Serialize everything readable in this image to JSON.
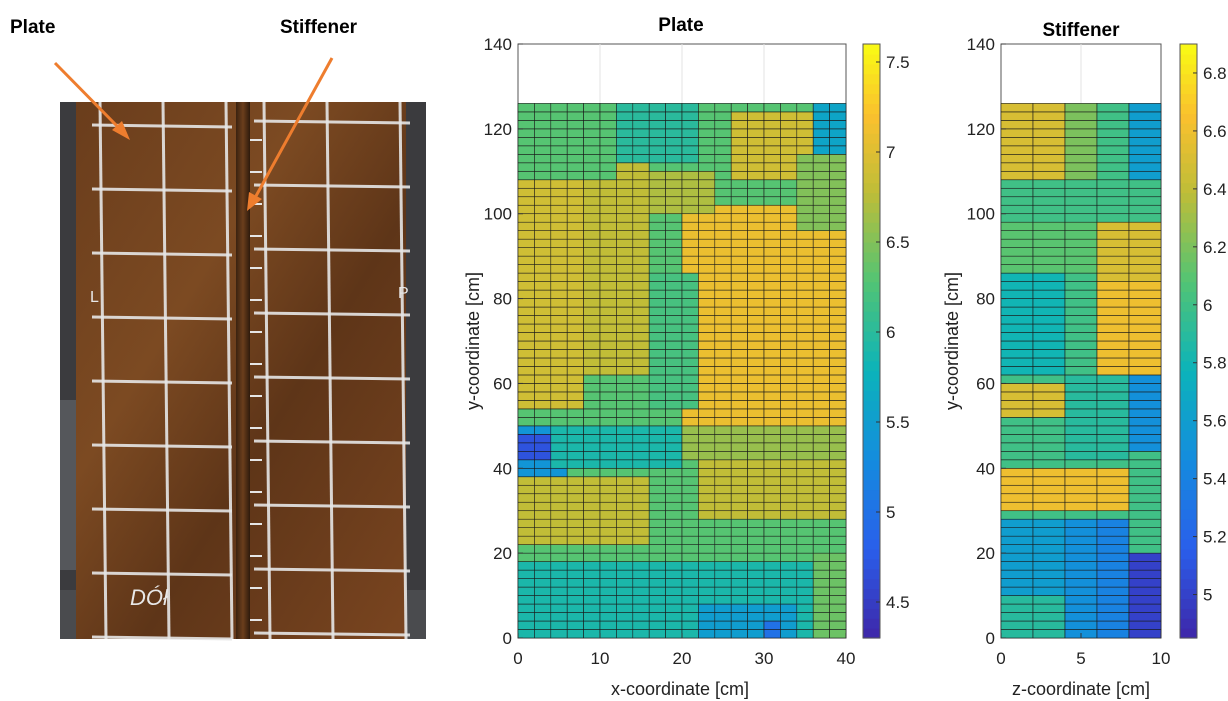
{
  "photo": {
    "label_plate": "Plate",
    "label_stiffener": "Stiffener",
    "marks": {
      "left": "L",
      "right": "P",
      "bottom": "DÓł"
    }
  },
  "colormap": "parula",
  "chart_data": [
    {
      "type": "heatmap",
      "title": "Plate",
      "xlabel": "x-coordinate [cm]",
      "ylabel": "y-coordinate [cm]",
      "xlim": [
        0,
        40
      ],
      "ylim": [
        0,
        140
      ],
      "xticks": [
        0,
        10,
        20,
        30,
        40
      ],
      "yticks": [
        0,
        20,
        40,
        60,
        80,
        100,
        120,
        140
      ],
      "grid_extent": {
        "x": [
          0,
          40
        ],
        "y": [
          0,
          126
        ]
      },
      "grid_size": {
        "cols": 20,
        "rows": 63
      },
      "colorbar": {
        "min": 4.3,
        "max": 7.6,
        "ticks": [
          4.5,
          5,
          5.5,
          6,
          6.5,
          7,
          7.5
        ]
      },
      "value_regions": [
        {
          "x": [
            0,
            40
          ],
          "y": [
            0,
            126
          ],
          "value": 6.3
        },
        {
          "x": [
            0,
            8
          ],
          "y": [
            55,
            112
          ],
          "value": 6.9
        },
        {
          "x": [
            8,
            16
          ],
          "y": [
            62,
            112
          ],
          "value": 6.8
        },
        {
          "x": [
            20,
            40
          ],
          "y": [
            50,
            102
          ],
          "value": 7.1
        },
        {
          "x": [
            16,
            24
          ],
          "y": [
            100,
            110
          ],
          "value": 6.7
        },
        {
          "x": [
            26,
            36
          ],
          "y": [
            108,
            124
          ],
          "value": 6.9
        },
        {
          "x": [
            0,
            12
          ],
          "y": [
            108,
            126
          ],
          "value": 6.3
        },
        {
          "x": [
            12,
            22
          ],
          "y": [
            112,
            126
          ],
          "value": 6.0
        },
        {
          "x": [
            36,
            40
          ],
          "y": [
            114,
            126
          ],
          "value": 5.6
        },
        {
          "x": [
            34,
            40
          ],
          "y": [
            96,
            114
          ],
          "value": 6.5
        },
        {
          "x": [
            16,
            22
          ],
          "y": [
            55,
            85
          ],
          "value": 6.2
        },
        {
          "x": [
            0,
            6
          ],
          "y": [
            38,
            50
          ],
          "value": 5.4
        },
        {
          "x": [
            0,
            4
          ],
          "y": [
            42,
            48
          ],
          "value": 4.7
        },
        {
          "x": [
            4,
            20
          ],
          "y": [
            40,
            50
          ],
          "value": 5.9
        },
        {
          "x": [
            0,
            16
          ],
          "y": [
            22,
            38
          ],
          "value": 6.8
        },
        {
          "x": [
            22,
            40
          ],
          "y": [
            28,
            42
          ],
          "value": 6.8
        },
        {
          "x": [
            20,
            40
          ],
          "y": [
            42,
            50
          ],
          "value": 6.6
        },
        {
          "x": [
            0,
            40
          ],
          "y": [
            0,
            18
          ],
          "value": 5.9
        },
        {
          "x": [
            22,
            34
          ],
          "y": [
            0,
            8
          ],
          "value": 5.5
        },
        {
          "x": [
            30,
            32
          ],
          "y": [
            0,
            4
          ],
          "value": 5.0
        },
        {
          "x": [
            36,
            40
          ],
          "y": [
            0,
            20
          ],
          "value": 6.4
        }
      ]
    },
    {
      "type": "heatmap",
      "title": "Stiffener",
      "xlabel": "z-coordinate [cm]",
      "ylabel": "y-coordinate [cm]",
      "xlim": [
        0,
        10
      ],
      "ylim": [
        0,
        140
      ],
      "xticks": [
        0,
        5,
        10
      ],
      "yticks": [
        0,
        20,
        40,
        60,
        80,
        100,
        120,
        140
      ],
      "grid_extent": {
        "x": [
          0,
          10
        ],
        "y": [
          0,
          126
        ]
      },
      "grid_size": {
        "cols": 5,
        "rows": 63
      },
      "colorbar": {
        "min": 4.85,
        "max": 6.9,
        "ticks": [
          5,
          5.2,
          5.4,
          5.6,
          5.8,
          6,
          6.2,
          6.4,
          6.6,
          6.8
        ]
      },
      "value_regions": [
        {
          "x": [
            0,
            10
          ],
          "y": [
            0,
            126
          ],
          "value": 6.0
        },
        {
          "x": [
            0,
            4
          ],
          "y": [
            108,
            126
          ],
          "value": 6.5
        },
        {
          "x": [
            4,
            6
          ],
          "y": [
            108,
            126
          ],
          "value": 6.2
        },
        {
          "x": [
            6,
            8
          ],
          "y": [
            108,
            126
          ],
          "value": 6.0
        },
        {
          "x": [
            8,
            10
          ],
          "y": [
            108,
            126
          ],
          "value": 5.6
        },
        {
          "x": [
            0,
            10
          ],
          "y": [
            98,
            108
          ],
          "value": 6.0
        },
        {
          "x": [
            0,
            6
          ],
          "y": [
            86,
            98
          ],
          "value": 6.1
        },
        {
          "x": [
            6,
            10
          ],
          "y": [
            84,
            98
          ],
          "value": 6.5
        },
        {
          "x": [
            0,
            4
          ],
          "y": [
            62,
            86
          ],
          "value": 5.8
        },
        {
          "x": [
            4,
            6
          ],
          "y": [
            62,
            86
          ],
          "value": 6.0
        },
        {
          "x": [
            6,
            10
          ],
          "y": [
            62,
            84
          ],
          "value": 6.6
        },
        {
          "x": [
            0,
            4
          ],
          "y": [
            52,
            60
          ],
          "value": 6.5
        },
        {
          "x": [
            4,
            8
          ],
          "y": [
            42,
            62
          ],
          "value": 5.9
        },
        {
          "x": [
            8,
            10
          ],
          "y": [
            44,
            62
          ],
          "value": 5.5
        },
        {
          "x": [
            0,
            8
          ],
          "y": [
            30,
            40
          ],
          "value": 6.6
        },
        {
          "x": [
            8,
            10
          ],
          "y": [
            30,
            44
          ],
          "value": 6.0
        },
        {
          "x": [
            0,
            4
          ],
          "y": [
            0,
            28
          ],
          "value": 5.6
        },
        {
          "x": [
            4,
            6
          ],
          "y": [
            0,
            28
          ],
          "value": 5.5
        },
        {
          "x": [
            6,
            8
          ],
          "y": [
            0,
            28
          ],
          "value": 5.4
        },
        {
          "x": [
            8,
            10
          ],
          "y": [
            0,
            20
          ],
          "value": 5.0
        },
        {
          "x": [
            0,
            4
          ],
          "y": [
            0,
            10
          ],
          "value": 5.9
        }
      ]
    }
  ]
}
